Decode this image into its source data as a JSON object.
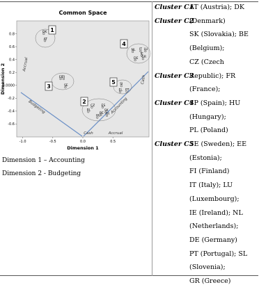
{
  "figure": {
    "title": "Common Space",
    "x_label": "Dimension 1",
    "y_label": "Dimension 2",
    "xlim": [
      -1.1,
      1.1
    ],
    "ylim": [
      -0.8,
      1.0
    ],
    "xticks": [
      {
        "value": -1,
        "label": "-1.0"
      },
      -0.5,
      {
        "value": 0,
        "label": "0.0"
      },
      0.5
    ],
    "yticks": [
      0.8,
      0.6,
      0.4,
      0.2,
      {
        "value": 0,
        "label": "0.0000"
      },
      -0.2,
      -0.4,
      -0.6
    ],
    "points": [
      {
        "label": "DK",
        "x": -0.65,
        "y": 0.8
      },
      {
        "label": "AT",
        "x": -0.63,
        "y": 0.69
      },
      {
        "label": "EE",
        "x": -0.37,
        "y": 0.1
      },
      {
        "label": "FI",
        "x": -0.32,
        "y": 0.1
      },
      {
        "label": "SE",
        "x": -0.29,
        "y": -0.03
      },
      {
        "label": "CZ",
        "x": 0.15,
        "y": -0.34
      },
      {
        "label": "ES",
        "x": 0.33,
        "y": -0.34
      },
      {
        "label": "PL",
        "x": 0.09,
        "y": -0.41
      },
      {
        "label": "SK",
        "x": 0.38,
        "y": -0.42
      },
      {
        "label": "BE",
        "x": 0.3,
        "y": -0.46
      },
      {
        "label": "FR",
        "x": 0.4,
        "y": -0.47
      },
      {
        "label": "HU",
        "x": 0.24,
        "y": -0.5
      },
      {
        "label": "SI",
        "x": 0.64,
        "y": -0.01
      },
      {
        "label": "EL",
        "x": 0.62,
        "y": -0.1
      },
      {
        "label": "PT",
        "x": 0.73,
        "y": -0.1
      },
      {
        "label": "NL",
        "x": 0.83,
        "y": 0.52
      },
      {
        "label": "IT",
        "x": 0.96,
        "y": 0.53
      },
      {
        "label": "LU",
        "x": 1.04,
        "y": 0.53
      },
      {
        "label": "IE",
        "x": 0.98,
        "y": 0.46
      },
      {
        "label": "GR",
        "x": 1.0,
        "y": 0.41
      },
      {
        "label": "DE",
        "x": 0.87,
        "y": 0.39
      }
    ],
    "cluster_numbers": [
      "1",
      "2",
      "3",
      "4",
      "5"
    ],
    "annotations": [
      "Accrual",
      "Budgeting",
      "Cash",
      "Accrual",
      "Accounting",
      "Cash"
    ]
  },
  "captions": [
    "Dimension 1 – Accounting",
    "Dimension 2 - Budgeting"
  ],
  "clusters": [
    "Cluster C1",
    "Cluster C2",
    "Cluster C3",
    "Cluster C4",
    "Cluster C5"
  ],
  "member_lines": [
    "AT (Austria); DK",
    "(Denmark)",
    "SK (Slovakia); BE",
    "(Belgium);",
    "CZ (Czech",
    "Republic); FR",
    "(France);",
    "SP (Spain); HU",
    "(Hungary);",
    "PL (Poland)",
    "SE (Sweden); EE",
    "(Estonia);",
    "FI (Finland)",
    "IT (Italy); LU",
    "(Luxembourg);",
    "IE (Ireland); NL",
    "(Netherlands);",
    "DE (Germany)",
    "PT (Portugal); SL",
    "(Slovenia);",
    "GR (Greece)"
  ]
}
